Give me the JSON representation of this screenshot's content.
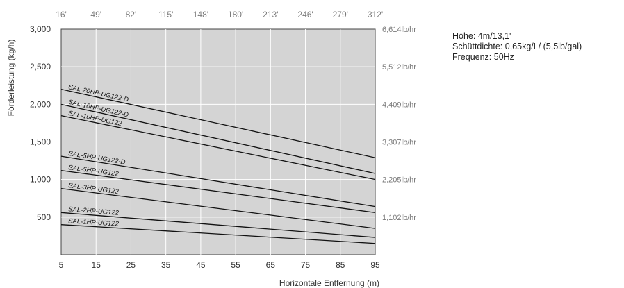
{
  "chart_data": {
    "type": "line",
    "xlabel": "Horizontale Entfernung (m)",
    "ylabel": "Förderleistung (kg/h)",
    "xlim": [
      5,
      95
    ],
    "ylim": [
      0,
      3000
    ],
    "x_ticks": [
      5,
      15,
      25,
      35,
      45,
      55,
      65,
      75,
      85,
      95
    ],
    "y_ticks": [
      {
        "value": 500,
        "label": "500"
      },
      {
        "value": 1000,
        "label": "1,000"
      },
      {
        "value": 1500,
        "label": "1,500"
      },
      {
        "value": 2000,
        "label": "2,000"
      },
      {
        "value": 2500,
        "label": "2,500"
      },
      {
        "value": 3000,
        "label": "3,000"
      }
    ],
    "top_ticks": [
      "16'",
      "49'",
      "82'",
      "115'",
      "148'",
      "180'",
      "213'",
      "246'",
      "279'",
      "312'"
    ],
    "right_ticks": [
      {
        "value": 500,
        "label": "1,102lb/hr"
      },
      {
        "value": 1000,
        "label": "2,205lb/hr"
      },
      {
        "value": 1500,
        "label": "3,307lb/hr"
      },
      {
        "value": 2000,
        "label": "4,409lb/hr"
      },
      {
        "value": 2500,
        "label": "5,512lb/hr"
      },
      {
        "value": 3000,
        "label": "6,614lb/hr"
      }
    ],
    "grid": true,
    "series": [
      {
        "name": "SAL-20HP-UG122-D",
        "x": [
          5,
          95
        ],
        "y": [
          2200,
          1290
        ]
      },
      {
        "name": "SAL-10HP-UG122-D",
        "x": [
          5,
          95
        ],
        "y": [
          2000,
          1080
        ]
      },
      {
        "name": "SAL-10HP-UG122",
        "x": [
          5,
          95
        ],
        "y": [
          1850,
          1000
        ]
      },
      {
        "name": "SAL-5HP-UG122-D",
        "x": [
          5,
          95
        ],
        "y": [
          1310,
          640
        ]
      },
      {
        "name": "SAL-5HP-UG122",
        "x": [
          5,
          95
        ],
        "y": [
          1120,
          560
        ]
      },
      {
        "name": "SAL-3HP-UG122",
        "x": [
          5,
          95
        ],
        "y": [
          880,
          350
        ]
      },
      {
        "name": "SAL-2HP-UG122",
        "x": [
          5,
          95
        ],
        "y": [
          560,
          230
        ]
      },
      {
        "name": "SAL-1HP-UG122",
        "x": [
          5,
          95
        ],
        "y": [
          400,
          150
        ]
      }
    ]
  },
  "info": {
    "height": "Höhe: 4m/13,1'",
    "density": "Schüttdichte: 0,65kg/L/ (5,5lb/gal)",
    "frequency": "Frequenz: 50Hz"
  }
}
